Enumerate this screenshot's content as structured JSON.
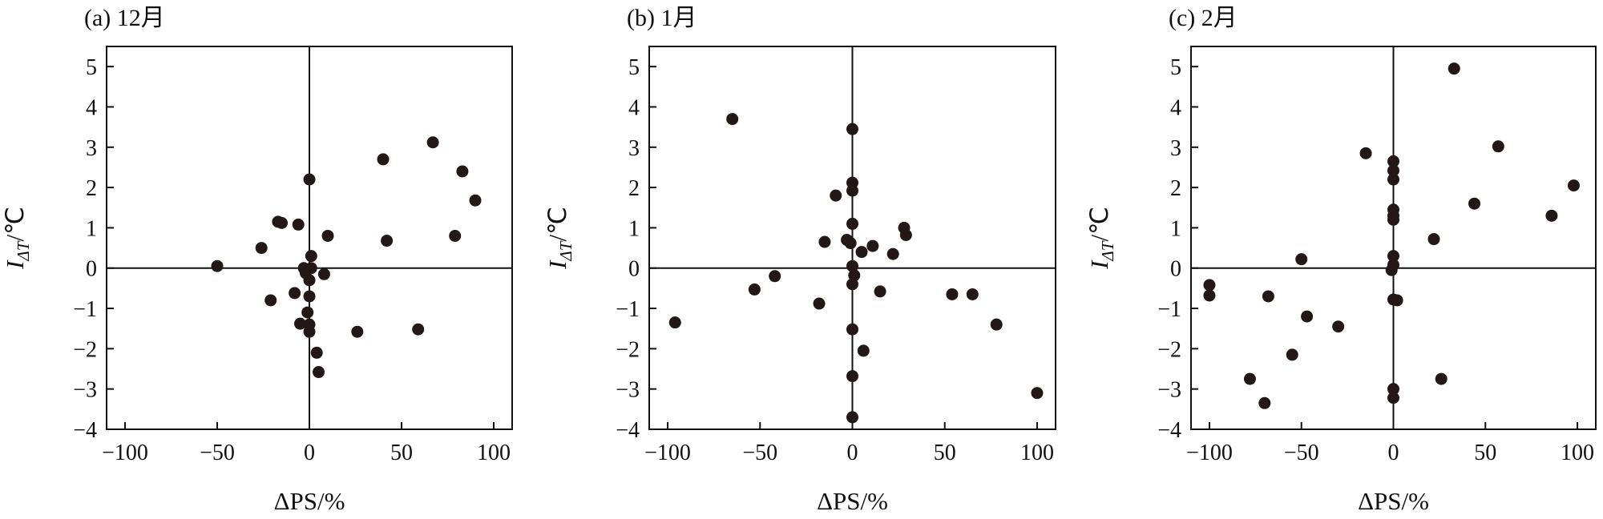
{
  "chart_data": [
    {
      "type": "scatter",
      "title": "(a) 12月",
      "xlabel": "ΔPS/%",
      "ylabel_main": "I",
      "ylabel_sub": "ΔT",
      "ylabel_unit": "/℃",
      "xlim": [
        -110,
        110
      ],
      "ylim": [
        -4,
        5.5
      ],
      "xticks": [
        -100,
        -50,
        0,
        50,
        100
      ],
      "yticks": [
        -4,
        -3,
        -2,
        -1,
        0,
        1,
        2,
        3,
        4,
        5
      ],
      "points": [
        {
          "x": -50,
          "y": 0.05
        },
        {
          "x": -26,
          "y": 0.5
        },
        {
          "x": -21,
          "y": -0.8
        },
        {
          "x": -17,
          "y": 1.15
        },
        {
          "x": -15,
          "y": 1.12
        },
        {
          "x": -8,
          "y": -0.62
        },
        {
          "x": -6,
          "y": 1.08
        },
        {
          "x": -5,
          "y": -1.38
        },
        {
          "x": -3,
          "y": 0.0
        },
        {
          "x": -2,
          "y": -0.12
        },
        {
          "x": -1,
          "y": -1.1
        },
        {
          "x": 0,
          "y": 2.2
        },
        {
          "x": 0,
          "y": -0.3
        },
        {
          "x": 0,
          "y": -0.7
        },
        {
          "x": 0,
          "y": -1.4
        },
        {
          "x": 0,
          "y": -1.58
        },
        {
          "x": 1,
          "y": 0.3
        },
        {
          "x": 1,
          "y": 0.0
        },
        {
          "x": 4,
          "y": -2.1
        },
        {
          "x": 5,
          "y": -2.58
        },
        {
          "x": 8,
          "y": -0.15
        },
        {
          "x": 10,
          "y": 0.8
        },
        {
          "x": 26,
          "y": -1.58
        },
        {
          "x": 40,
          "y": 2.7
        },
        {
          "x": 42,
          "y": 0.68
        },
        {
          "x": 59,
          "y": -1.52
        },
        {
          "x": 67,
          "y": 3.12
        },
        {
          "x": 79,
          "y": 0.8
        },
        {
          "x": 83,
          "y": 2.4
        },
        {
          "x": 90,
          "y": 1.68
        }
      ]
    },
    {
      "type": "scatter",
      "title": "(b) 1月",
      "xlabel": "ΔPS/%",
      "ylabel_main": "I",
      "ylabel_sub": "ΔT",
      "ylabel_unit": "/℃",
      "xlim": [
        -110,
        110
      ],
      "ylim": [
        -4,
        5.5
      ],
      "xticks": [
        -100,
        -50,
        0,
        50,
        100
      ],
      "yticks": [
        -4,
        -3,
        -2,
        -1,
        0,
        1,
        2,
        3,
        4,
        5
      ],
      "points": [
        {
          "x": -96,
          "y": -1.35
        },
        {
          "x": -65,
          "y": 3.7
        },
        {
          "x": -53,
          "y": -0.53
        },
        {
          "x": -42,
          "y": -0.2
        },
        {
          "x": -18,
          "y": -0.88
        },
        {
          "x": -15,
          "y": 0.65
        },
        {
          "x": -9,
          "y": 1.8
        },
        {
          "x": -3,
          "y": 0.7
        },
        {
          "x": -1,
          "y": 0.62
        },
        {
          "x": 0,
          "y": 3.45
        },
        {
          "x": 0,
          "y": 2.12
        },
        {
          "x": 0,
          "y": 1.92
        },
        {
          "x": 0,
          "y": 1.1
        },
        {
          "x": 0,
          "y": 0.05
        },
        {
          "x": 0,
          "y": -0.4
        },
        {
          "x": 0,
          "y": -1.52
        },
        {
          "x": 0,
          "y": -2.68
        },
        {
          "x": 0,
          "y": -3.7
        },
        {
          "x": 1,
          "y": -0.18
        },
        {
          "x": 5,
          "y": 0.4
        },
        {
          "x": 6,
          "y": -2.05
        },
        {
          "x": 11,
          "y": 0.55
        },
        {
          "x": 15,
          "y": -0.58
        },
        {
          "x": 22,
          "y": 0.35
        },
        {
          "x": 28,
          "y": 1.0
        },
        {
          "x": 29,
          "y": 0.82
        },
        {
          "x": 54,
          "y": -0.65
        },
        {
          "x": 65,
          "y": -0.65
        },
        {
          "x": 78,
          "y": -1.4
        },
        {
          "x": 100,
          "y": -3.1
        }
      ]
    },
    {
      "type": "scatter",
      "title": "(c) 2月",
      "xlabel": "ΔPS/%",
      "ylabel_main": "I",
      "ylabel_sub": "ΔT",
      "ylabel_unit": "/℃",
      "xlim": [
        -110,
        110
      ],
      "ylim": [
        -4,
        5.5
      ],
      "xticks": [
        -100,
        -50,
        0,
        50,
        100
      ],
      "yticks": [
        -4,
        -3,
        -2,
        -1,
        0,
        1,
        2,
        3,
        4,
        5
      ],
      "points": [
        {
          "x": -100,
          "y": -0.42
        },
        {
          "x": -100,
          "y": -0.68
        },
        {
          "x": -78,
          "y": -2.75
        },
        {
          "x": -70,
          "y": -3.35
        },
        {
          "x": -68,
          "y": -0.7
        },
        {
          "x": -55,
          "y": -2.15
        },
        {
          "x": -50,
          "y": 0.22
        },
        {
          "x": -47,
          "y": -1.2
        },
        {
          "x": -30,
          "y": -1.45
        },
        {
          "x": -15,
          "y": 2.85
        },
        {
          "x": 0,
          "y": 2.65
        },
        {
          "x": 0,
          "y": 2.42
        },
        {
          "x": 0,
          "y": 2.2
        },
        {
          "x": 0,
          "y": 1.45
        },
        {
          "x": 0,
          "y": 1.3
        },
        {
          "x": 0,
          "y": 1.2
        },
        {
          "x": 0,
          "y": 0.3
        },
        {
          "x": 0,
          "y": 0.08
        },
        {
          "x": -1,
          "y": -0.05
        },
        {
          "x": 0,
          "y": -0.78
        },
        {
          "x": 2,
          "y": -0.8
        },
        {
          "x": 0,
          "y": -3.0
        },
        {
          "x": 0,
          "y": -3.22
        },
        {
          "x": 22,
          "y": 0.72
        },
        {
          "x": 26,
          "y": -2.75
        },
        {
          "x": 33,
          "y": 4.95
        },
        {
          "x": 44,
          "y": 1.6
        },
        {
          "x": 57,
          "y": 3.02
        },
        {
          "x": 86,
          "y": 1.3
        },
        {
          "x": 98,
          "y": 2.05
        }
      ]
    }
  ]
}
